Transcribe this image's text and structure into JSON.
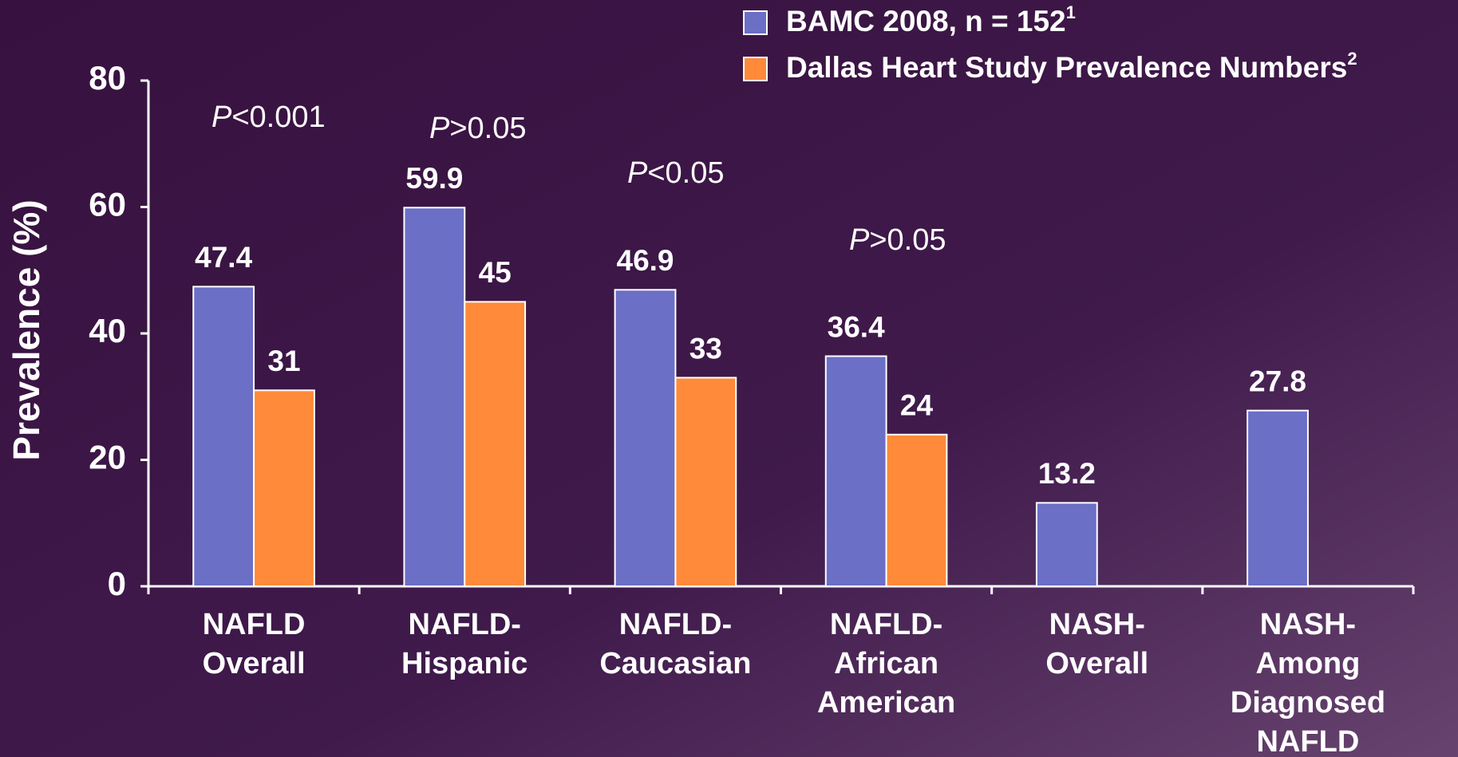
{
  "chart_data": {
    "type": "bar",
    "ylabel": "Prevalence (%)",
    "categories": [
      [
        "NAFLD",
        "Overall"
      ],
      [
        "NAFLD-",
        "Hispanic"
      ],
      [
        "NAFLD-",
        "Caucasian"
      ],
      [
        "NAFLD-",
        "African",
        "American"
      ],
      [
        "NASH-",
        "Overall"
      ],
      [
        "NASH-",
        "Among",
        "Diagnosed",
        "NAFLD"
      ]
    ],
    "series": [
      {
        "name": "BAMC 2008, n = 152",
        "footnote": "1",
        "color": "#6b6fc6",
        "values": [
          47.4,
          59.9,
          46.9,
          36.4,
          13.2,
          27.8
        ]
      },
      {
        "name": "Dallas Heart Study Prevalence Numbers",
        "footnote": "2",
        "color": "#ff8a3a",
        "values": [
          31,
          45,
          33,
          24,
          null,
          null
        ]
      }
    ],
    "annotations": [
      {
        "italic": "P",
        "text": "<0.001"
      },
      {
        "italic": "P",
        "text": ">0.05"
      },
      {
        "italic": "P",
        "text": "<0.05"
      },
      {
        "italic": "P",
        "text": ">0.05"
      }
    ],
    "ylim": [
      0,
      80
    ],
    "yticks": [
      0,
      20,
      40,
      60,
      80
    ],
    "grid": false
  }
}
